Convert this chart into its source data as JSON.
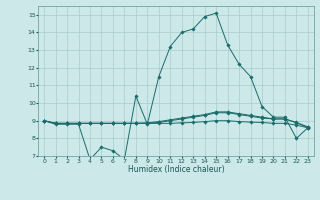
{
  "background_color": "#cce8e8",
  "grid_color": "#aacccc",
  "line_color": "#1a6b6b",
  "xlabel": "Humidex (Indice chaleur)",
  "xlim": [
    -0.5,
    23.5
  ],
  "ylim": [
    7,
    15.5
  ],
  "yticks": [
    7,
    8,
    9,
    10,
    11,
    12,
    13,
    14,
    15
  ],
  "xticks": [
    0,
    1,
    2,
    3,
    4,
    5,
    6,
    7,
    8,
    9,
    10,
    11,
    12,
    13,
    14,
    15,
    16,
    17,
    18,
    19,
    20,
    21,
    22,
    23
  ],
  "series": [
    {
      "x": [
        0,
        1,
        2,
        3,
        4,
        5,
        6,
        7,
        8,
        9,
        10,
        11,
        12,
        13,
        14,
        15,
        16,
        17,
        18,
        19,
        20,
        21,
        22,
        23
      ],
      "y": [
        9.0,
        8.8,
        8.8,
        8.8,
        6.8,
        7.5,
        7.3,
        6.8,
        10.4,
        8.8,
        11.5,
        13.2,
        14.0,
        14.2,
        14.9,
        15.1,
        13.3,
        12.2,
        11.5,
        9.8,
        9.2,
        9.2,
        8.0,
        8.6
      ]
    },
    {
      "x": [
        0,
        1,
        2,
        3,
        4,
        5,
        6,
        7,
        8,
        9,
        10,
        11,
        12,
        13,
        14,
        15,
        16,
        17,
        18,
        19,
        20,
        21,
        22,
        23
      ],
      "y": [
        9.0,
        8.85,
        8.85,
        8.85,
        8.85,
        8.85,
        8.85,
        8.85,
        8.85,
        8.85,
        8.9,
        9.0,
        9.1,
        9.2,
        9.3,
        9.45,
        9.45,
        9.35,
        9.25,
        9.15,
        9.1,
        9.1,
        8.9,
        8.65
      ]
    },
    {
      "x": [
        0,
        1,
        2,
        3,
        4,
        5,
        6,
        7,
        8,
        9,
        10,
        11,
        12,
        13,
        14,
        15,
        16,
        17,
        18,
        19,
        20,
        21,
        22,
        23
      ],
      "y": [
        9.0,
        8.85,
        8.85,
        8.85,
        8.85,
        8.85,
        8.85,
        8.85,
        8.85,
        8.88,
        8.95,
        9.05,
        9.15,
        9.25,
        9.35,
        9.5,
        9.5,
        9.4,
        9.3,
        9.2,
        9.1,
        9.1,
        8.88,
        8.62
      ]
    },
    {
      "x": [
        0,
        1,
        2,
        3,
        4,
        5,
        6,
        7,
        8,
        9,
        10,
        11,
        12,
        13,
        14,
        15,
        16,
        17,
        18,
        19,
        20,
        21,
        22,
        23
      ],
      "y": [
        9.0,
        8.85,
        8.85,
        8.85,
        8.85,
        8.85,
        8.85,
        8.85,
        8.85,
        8.85,
        8.85,
        8.85,
        8.88,
        8.9,
        8.95,
        9.0,
        9.0,
        8.95,
        8.92,
        8.9,
        8.85,
        8.85,
        8.75,
        8.6
      ]
    }
  ]
}
